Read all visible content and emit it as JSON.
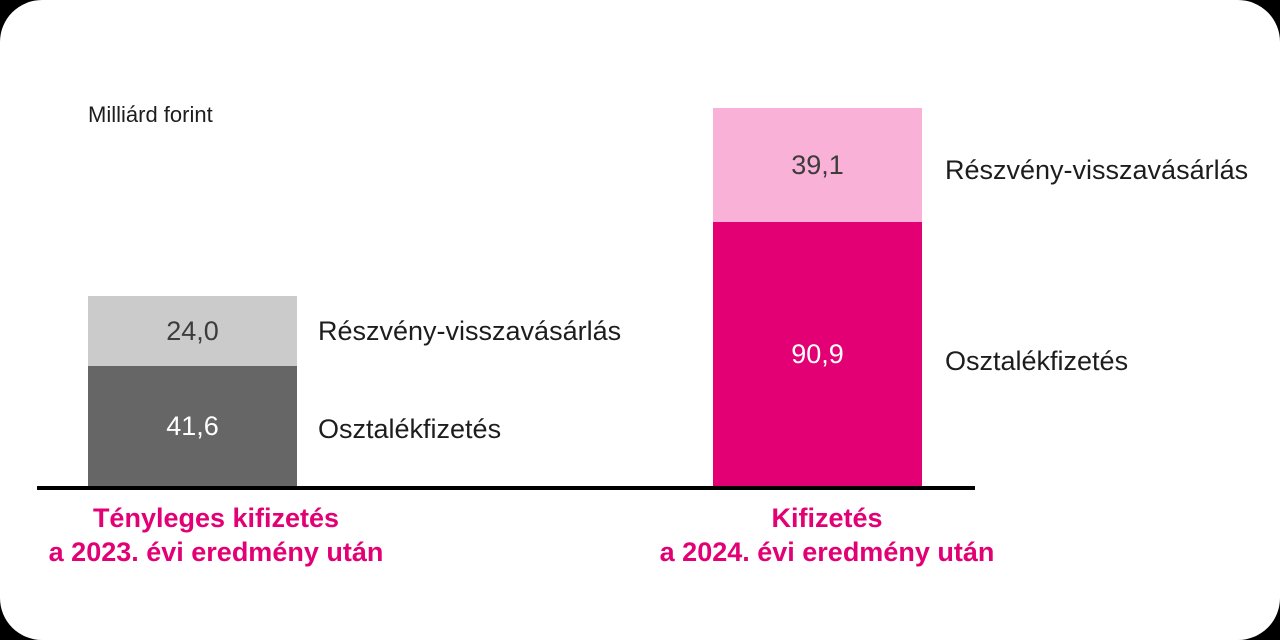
{
  "colors": {
    "background": "#000000",
    "card": "#ffffff",
    "magenta": "#e20074",
    "light-pink": "#f9b1d8",
    "dark-gray": "#666666",
    "light-gray": "#cbcbcb",
    "axis": "#000000",
    "text-dark": "#1d1d1d",
    "value-dark": "#3c3c3c",
    "value-light": "#ffffff"
  },
  "unit_label": "Milliárd forint",
  "left_bar": {
    "buyback_value": "24,0",
    "buyback_label": "Részvény-visszavásárlás",
    "dividend_value": "41,6",
    "dividend_label": "Osztalékfizetés",
    "axis_label_line1": "Tényleges kifizetés",
    "axis_label_line2": "a 2023. évi eredmény után"
  },
  "right_bar": {
    "buyback_value": "39,1",
    "buyback_label": "Részvény-visszavásárlás",
    "dividend_value": "90,9",
    "dividend_label": "Osztalékfizetés",
    "axis_label_line1": "Kifizetés",
    "axis_label_line2": "a 2024. évi eredmény után"
  },
  "chart_data": {
    "type": "bar",
    "stacked": true,
    "title": "Milliárd forint",
    "ylabel": "Milliárd forint",
    "value_format": "decimal-comma",
    "categories": [
      "Tényleges kifizetés a 2023. évi eredmény után",
      "Kifizetés a 2024. évi eredmény után"
    ],
    "series": [
      {
        "name": "Osztalékfizetés",
        "values": [
          41.6,
          90.9
        ],
        "colors": [
          "#666666",
          "#e20074"
        ],
        "value_text_colors": [
          "#ffffff",
          "#ffffff"
        ]
      },
      {
        "name": "Részvény-visszavásárlás",
        "values": [
          24.0,
          39.1
        ],
        "colors": [
          "#cbcbcb",
          "#f9b1d8"
        ],
        "value_text_colors": [
          "#3c3c3c",
          "#3c3c3c"
        ]
      }
    ],
    "totals": [
      65.6,
      130.0
    ],
    "legend_position": "right-of-bars",
    "gridlines": false,
    "y_axis_ticks": false,
    "baseline": true
  }
}
